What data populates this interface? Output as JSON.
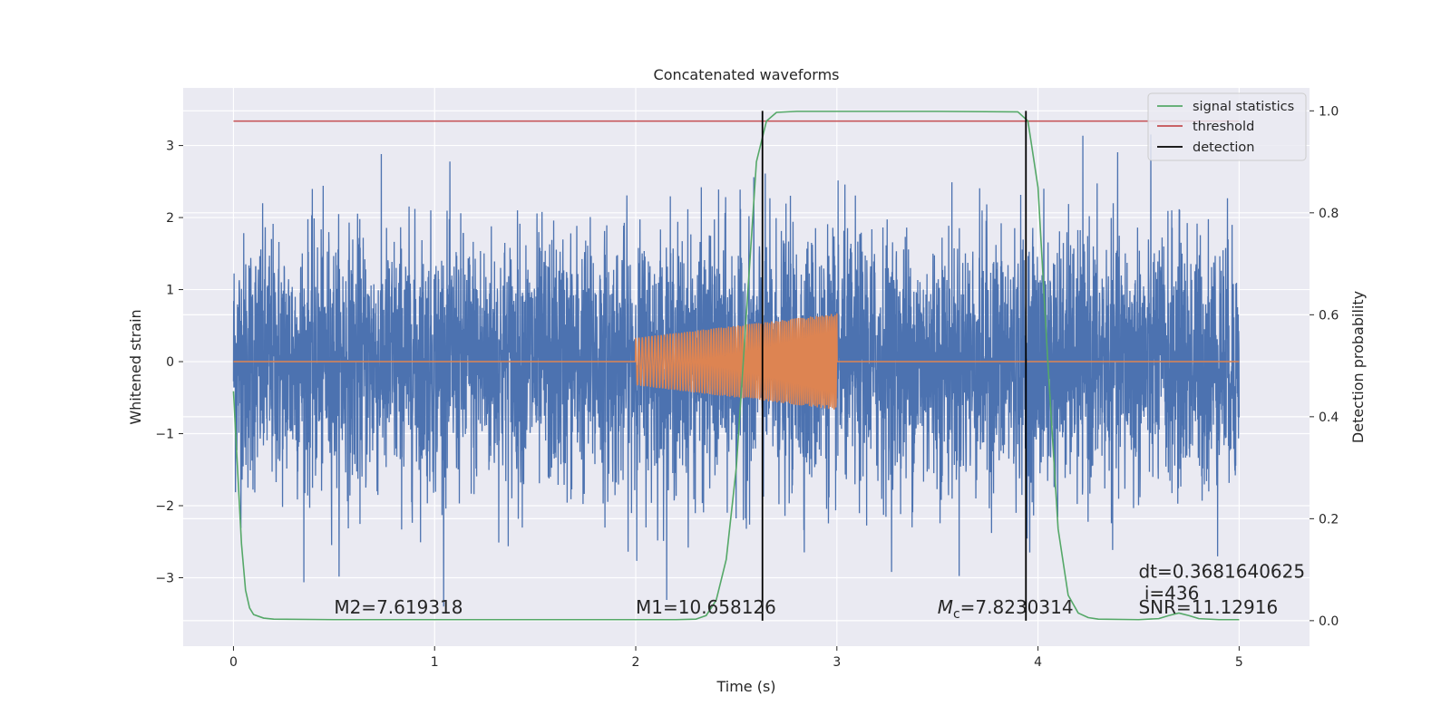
{
  "chart_data": {
    "type": "line",
    "title": "Concatenated waveforms",
    "xlabel": "Time (s)",
    "ylabel": "Whitened strain",
    "y2label": "Detection probability",
    "xlim": [
      -0.25,
      5.35
    ],
    "ylim": [
      -3.95,
      3.8
    ],
    "y2lim": [
      -0.05,
      1.045
    ],
    "x_ticks": [
      0,
      1,
      2,
      3,
      4,
      5
    ],
    "y_ticks": [
      -3,
      -2,
      -1,
      0,
      1,
      2,
      3
    ],
    "y2_ticks": [
      0.0,
      0.2,
      0.4,
      0.6,
      0.8,
      1.0
    ],
    "x_tick_labels": [
      "0",
      "1",
      "2",
      "3",
      "4",
      "5"
    ],
    "y_tick_labels": [
      "−3",
      "−2",
      "−1",
      "0",
      "1",
      "2",
      "3"
    ],
    "y2_tick_labels": [
      "0.0",
      "0.2",
      "0.4",
      "0.6",
      "0.8",
      "1.0"
    ],
    "grid": true,
    "legend_position": "top-right",
    "series": [
      {
        "name": "",
        "axis": "left",
        "color": "#4c72b0",
        "kind": "noise",
        "x_range": [
          0,
          5
        ],
        "typical_amplitude": 1.6,
        "peak_amplitude": 3.4
      },
      {
        "name": "",
        "axis": "left",
        "color": "#dd8452",
        "kind": "chirp",
        "x_range": [
          0,
          5
        ],
        "active_range": [
          2.0,
          3.0
        ],
        "start_amplitude": 0.33,
        "end_amplitude": 0.67
      },
      {
        "name": "signal statistics",
        "axis": "right",
        "color": "#55a868",
        "x": [
          0,
          0.02,
          0.04,
          0.06,
          0.08,
          0.1,
          0.15,
          0.2,
          0.5,
          1.0,
          1.5,
          2.0,
          2.2,
          2.3,
          2.35,
          2.4,
          2.45,
          2.5,
          2.55,
          2.6,
          2.65,
          2.7,
          2.8,
          3.0,
          3.5,
          3.9,
          3.95,
          4.0,
          4.05,
          4.1,
          4.15,
          4.2,
          4.25,
          4.3,
          4.5,
          4.6,
          4.65,
          4.7,
          4.75,
          4.8,
          4.9,
          5.0
        ],
        "y": [
          0.45,
          0.3,
          0.15,
          0.06,
          0.025,
          0.012,
          0.005,
          0.003,
          0.002,
          0.002,
          0.002,
          0.002,
          0.002,
          0.003,
          0.01,
          0.04,
          0.12,
          0.3,
          0.6,
          0.9,
          0.98,
          0.997,
          0.999,
          0.999,
          0.999,
          0.998,
          0.98,
          0.85,
          0.5,
          0.18,
          0.05,
          0.015,
          0.006,
          0.003,
          0.002,
          0.004,
          0.01,
          0.015,
          0.01,
          0.004,
          0.002,
          0.002
        ]
      },
      {
        "name": "threshold",
        "axis": "right",
        "color": "#c44e52",
        "x": [
          0,
          5
        ],
        "y": [
          0.98,
          0.98
        ]
      }
    ],
    "detections": {
      "name": "detection",
      "color": "#000000",
      "x": [
        2.63,
        3.94
      ],
      "y_range": [
        0.0,
        1.0
      ]
    },
    "annotations": [
      {
        "id": "m2",
        "text": "M2=7.619318",
        "x": 0.5,
        "y": -3.5
      },
      {
        "id": "m1",
        "text": "M1=10.658126",
        "x": 2.0,
        "y": -3.5
      },
      {
        "id": "mc",
        "text_italic": "M",
        "text_sub": "c",
        "text_rest": "=7.8230314",
        "x": 3.5,
        "y": -3.5
      },
      {
        "id": "snr",
        "text": "SNR=11.12916",
        "x": 4.5,
        "y": -3.5
      },
      {
        "id": "idx",
        "text": " i=436",
        "x": 4.5,
        "y": -3.3
      },
      {
        "id": "dt",
        "text": "dt=0.3681640625",
        "x": 4.5,
        "y": -3.0
      }
    ]
  }
}
